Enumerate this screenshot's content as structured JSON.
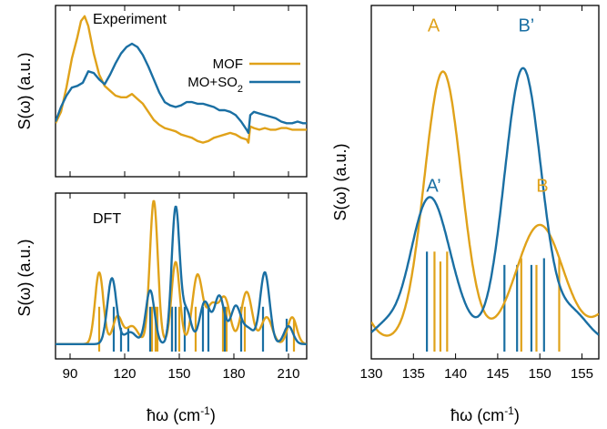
{
  "colors": {
    "mof": "#e0a21a",
    "so2": "#1a6fa3"
  },
  "chart_data": [
    {
      "type": "line",
      "panel": "experiment",
      "title": "Experiment",
      "ylabel": "S(ω) (a.u.)",
      "xlim": [
        82,
        220
      ],
      "ylim": [
        0,
        1
      ],
      "legend_position": "top-right",
      "series": [
        {
          "name": "MOF",
          "color": "mof",
          "points": [
            [
              82,
              0.33
            ],
            [
              85,
              0.4
            ],
            [
              88,
              0.55
            ],
            [
              91,
              0.73
            ],
            [
              94,
              0.86
            ],
            [
              96,
              0.96
            ],
            [
              98,
              0.99
            ],
            [
              100,
              0.93
            ],
            [
              103,
              0.76
            ],
            [
              106,
              0.63
            ],
            [
              109,
              0.56
            ],
            [
              112,
              0.53
            ],
            [
              115,
              0.5
            ],
            [
              118,
              0.49
            ],
            [
              121,
              0.49
            ],
            [
              124,
              0.51
            ],
            [
              127,
              0.48
            ],
            [
              130,
              0.45
            ],
            [
              133,
              0.4
            ],
            [
              136,
              0.35
            ],
            [
              139,
              0.32
            ],
            [
              142,
              0.3
            ],
            [
              145,
              0.29
            ],
            [
              148,
              0.28
            ],
            [
              151,
              0.26
            ],
            [
              154,
              0.25
            ],
            [
              157,
              0.24
            ],
            [
              160,
              0.22
            ],
            [
              163,
              0.21
            ],
            [
              166,
              0.22
            ],
            [
              169,
              0.24
            ],
            [
              172,
              0.25
            ],
            [
              175,
              0.26
            ],
            [
              178,
              0.27
            ],
            [
              181,
              0.26
            ],
            [
              184,
              0.24
            ],
            [
              187,
              0.23
            ],
            [
              188,
              0.21
            ],
            [
              189,
              0.31
            ],
            [
              191,
              0.3
            ],
            [
              194,
              0.29
            ],
            [
              197,
              0.3
            ],
            [
              200,
              0.29
            ],
            [
              203,
              0.29
            ],
            [
              206,
              0.3
            ],
            [
              209,
              0.3
            ],
            [
              212,
              0.29
            ],
            [
              215,
              0.29
            ],
            [
              218,
              0.29
            ],
            [
              220,
              0.29
            ]
          ]
        },
        {
          "name": "MO+SO2",
          "color": "so2",
          "points": [
            [
              82,
              0.34
            ],
            [
              85,
              0.43
            ],
            [
              88,
              0.5
            ],
            [
              91,
              0.55
            ],
            [
              94,
              0.56
            ],
            [
              97,
              0.58
            ],
            [
              100,
              0.65
            ],
            [
              103,
              0.64
            ],
            [
              106,
              0.6
            ],
            [
              109,
              0.57
            ],
            [
              112,
              0.63
            ],
            [
              115,
              0.7
            ],
            [
              118,
              0.76
            ],
            [
              121,
              0.8
            ],
            [
              124,
              0.82
            ],
            [
              127,
              0.8
            ],
            [
              130,
              0.75
            ],
            [
              133,
              0.68
            ],
            [
              136,
              0.6
            ],
            [
              139,
              0.52
            ],
            [
              142,
              0.46
            ],
            [
              145,
              0.44
            ],
            [
              148,
              0.43
            ],
            [
              151,
              0.44
            ],
            [
              154,
              0.46
            ],
            [
              157,
              0.46
            ],
            [
              160,
              0.45
            ],
            [
              163,
              0.45
            ],
            [
              166,
              0.44
            ],
            [
              169,
              0.43
            ],
            [
              172,
              0.41
            ],
            [
              175,
              0.41
            ],
            [
              178,
              0.4
            ],
            [
              181,
              0.38
            ],
            [
              184,
              0.34
            ],
            [
              187,
              0.29
            ],
            [
              188,
              0.27
            ],
            [
              189,
              0.38
            ],
            [
              191,
              0.4
            ],
            [
              194,
              0.39
            ],
            [
              197,
              0.38
            ],
            [
              200,
              0.37
            ],
            [
              203,
              0.36
            ],
            [
              206,
              0.34
            ],
            [
              209,
              0.33
            ],
            [
              212,
              0.33
            ],
            [
              215,
              0.34
            ],
            [
              218,
              0.33
            ],
            [
              220,
              0.33
            ]
          ]
        }
      ]
    },
    {
      "type": "line",
      "panel": "dft",
      "title": "DFT",
      "ylabel": "S(ω) (a.u.)",
      "xlabel": "ħω (cm-1)",
      "xlim": [
        82,
        220
      ],
      "ylim": [
        0,
        1
      ],
      "xticks": [
        90,
        120,
        150,
        180,
        210
      ],
      "series": [
        {
          "name": "MOF",
          "color": "mof",
          "peaks": [
            [
              106,
              0.48,
              2.3
            ],
            [
              116,
              0.18,
              2.5
            ],
            [
              124,
              0.12,
              3.5
            ],
            [
              136,
              0.96,
              2.2
            ],
            [
              148,
              0.55,
              2.3
            ],
            [
              160,
              0.46,
              2.8
            ],
            [
              168,
              0.25,
              3.0
            ],
            [
              175,
              0.3,
              3.0
            ],
            [
              187,
              0.35,
              3.0
            ],
            [
              198,
              0.18,
              3.0
            ],
            [
              212,
              0.18,
              2.5
            ]
          ],
          "sticks": [
            [
              106,
              0.3
            ],
            [
              135,
              0.3
            ],
            [
              137,
              0.3
            ],
            [
              138,
              0.3
            ],
            [
              146,
              0.3
            ],
            [
              150,
              0.3
            ],
            [
              159,
              0.3
            ],
            [
              174,
              0.3
            ],
            [
              176,
              0.3
            ],
            [
              186,
              0.3
            ],
            [
              213,
              0.22
            ]
          ]
        },
        {
          "name": "MO+SO2",
          "color": "so2",
          "peaks": [
            [
              113,
              0.44,
              2.5
            ],
            [
              123,
              0.08,
              3.5
            ],
            [
              134,
              0.36,
              2.4
            ],
            [
              148,
              0.91,
              2.2
            ],
            [
              154,
              0.22,
              2.5
            ],
            [
              164,
              0.28,
              2.8
            ],
            [
              172,
              0.32,
              2.8
            ],
            [
              181,
              0.25,
              2.8
            ],
            [
              188,
              0.1,
              3.0
            ],
            [
              197,
              0.48,
              2.6
            ],
            [
              210,
              0.12,
              2.5
            ]
          ],
          "sticks": [
            [
              114,
              0.3
            ],
            [
              118,
              0.16
            ],
            [
              122,
              0.16
            ],
            [
              134,
              0.3
            ],
            [
              146,
              0.3
            ],
            [
              148,
              0.3
            ],
            [
              153,
              0.3
            ],
            [
              163,
              0.3
            ],
            [
              166,
              0.3
            ],
            [
              175,
              0.3
            ],
            [
              184,
              0.3
            ],
            [
              196,
              0.3
            ],
            [
              209,
              0.22
            ]
          ]
        }
      ]
    },
    {
      "type": "line",
      "panel": "zoom",
      "ylabel": "S(ω) (a.u.)",
      "xlabel": "ħω (cm-1)",
      "xlim": [
        130,
        157
      ],
      "ylim": [
        0,
        1
      ],
      "xticks": [
        130,
        135,
        140,
        145,
        150,
        155
      ],
      "peak_labels": [
        {
          "text": "A",
          "x": 137.4,
          "y": 0.96,
          "color": "mof"
        },
        {
          "text": "B’",
          "x": 148.4,
          "y": 0.96,
          "color": "so2"
        },
        {
          "text": "A’",
          "x": 137.4,
          "y": 0.48,
          "color": "so2"
        },
        {
          "text": "B",
          "x": 150.3,
          "y": 0.48,
          "color": "mof"
        }
      ],
      "series": [
        {
          "name": "MOF",
          "color": "mof",
          "peaks": [
            [
              138.5,
              0.81,
              2.2
            ],
            [
              150.0,
              0.35,
              2.8
            ],
            [
              160.0,
              0.14,
              2.5
            ],
            [
              127.0,
              0.18,
              2.0
            ]
          ],
          "sticks": [
            [
              137.5,
              0.3
            ],
            [
              138.2,
              0.27
            ],
            [
              139.0,
              0.3
            ],
            [
              147.8,
              0.28
            ],
            [
              149.6,
              0.26
            ],
            [
              152.3,
              0.28
            ]
          ]
        },
        {
          "name": "MO+SO2",
          "color": "so2",
          "peaks": [
            [
              136.8,
              0.42,
              2.2
            ],
            [
              148.0,
              0.82,
              2.2
            ],
            [
              131.5,
              0.04,
              1.5
            ],
            [
              140.0,
              0.06,
              1.8
            ],
            [
              154.0,
              0.08,
              1.8
            ]
          ],
          "sticks": [
            [
              136.6,
              0.3
            ],
            [
              145.8,
              0.26
            ],
            [
              147.3,
              0.26
            ],
            [
              149.0,
              0.26
            ],
            [
              150.5,
              0.28
            ]
          ]
        }
      ]
    }
  ]
}
